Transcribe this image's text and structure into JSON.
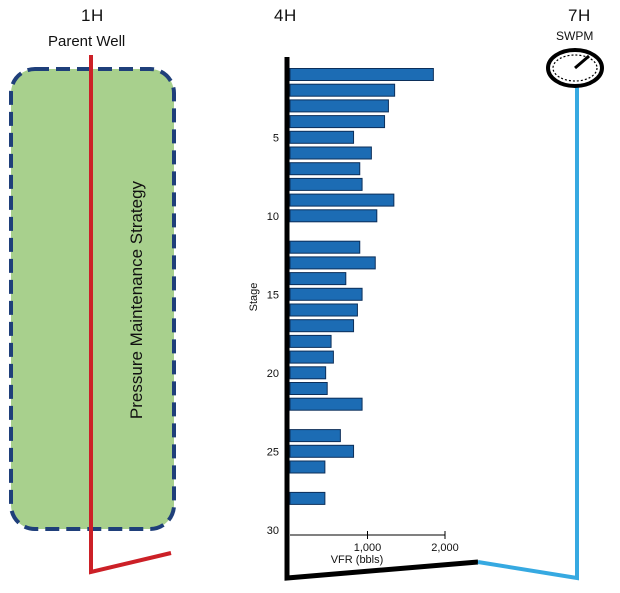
{
  "wells": {
    "w1": {
      "name": "1H",
      "subtitle": "Parent Well"
    },
    "w4": {
      "name": "4H"
    },
    "w7": {
      "name": "7H",
      "gauge_label": "SWPM"
    }
  },
  "strategy_label": "Pressure Maintenance Strategy",
  "colors": {
    "zone_fill": "#a8d08d",
    "zone_border": "#1f3f7a",
    "parent_well": "#cc2027",
    "bar_fill": "#1c6cb4",
    "bar_edge": "#0c2f5a",
    "monitor_well": "#36a9e1",
    "wellbore_4h": "#000000"
  },
  "chart_data": {
    "type": "bar",
    "orientation": "horizontal",
    "ylabel": "Stage",
    "xlabel": "VFR (bbls)",
    "y_ticks": [
      5,
      10,
      15,
      20,
      25,
      30
    ],
    "x_ticks": [
      1000,
      2000
    ],
    "x_tick_labels": [
      "1,000",
      "2,000"
    ],
    "ylim": [
      1,
      31
    ],
    "xlim": [
      0,
      2000
    ],
    "stages": [
      1,
      2,
      3,
      4,
      5,
      6,
      7,
      8,
      9,
      10,
      11,
      12,
      13,
      14,
      15,
      16,
      17,
      18,
      19,
      20,
      21,
      22,
      23,
      24,
      25,
      26,
      27,
      28,
      29,
      30
    ],
    "values": [
      1850,
      1350,
      1270,
      1220,
      820,
      1050,
      900,
      930,
      1340,
      1120,
      0,
      900,
      1100,
      720,
      930,
      870,
      820,
      530,
      560,
      460,
      480,
      930,
      0,
      650,
      820,
      450,
      0,
      450,
      0,
      0
    ]
  }
}
